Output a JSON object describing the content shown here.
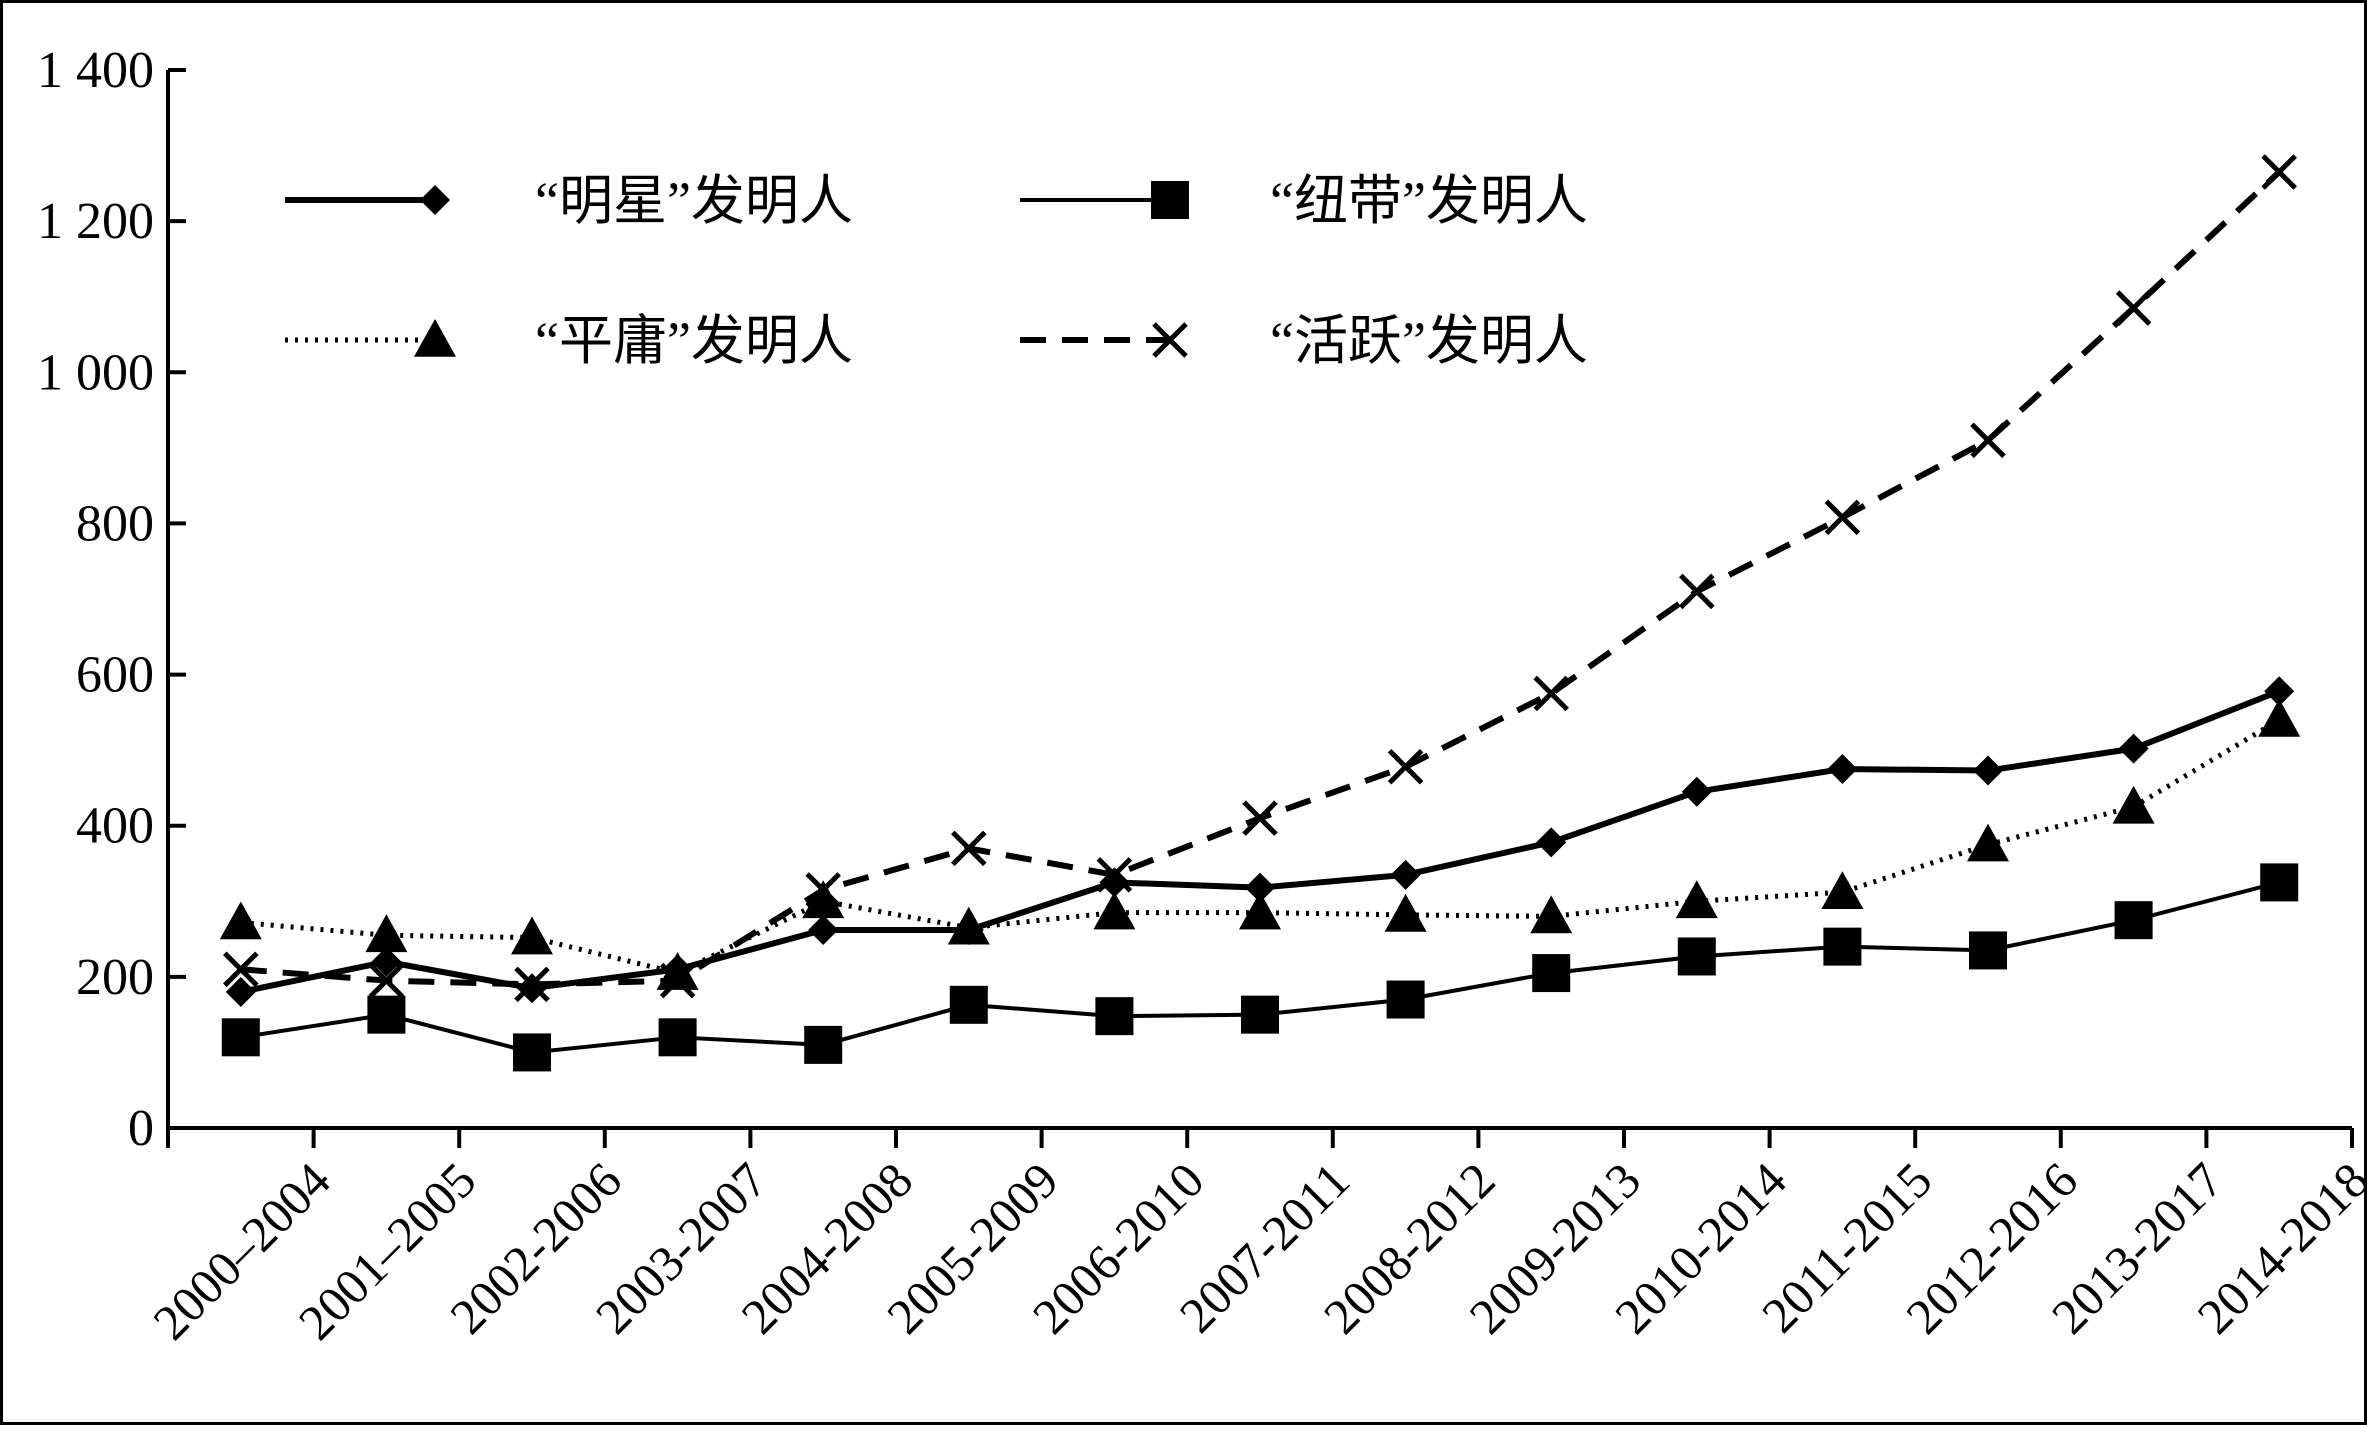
{
  "chart_data": {
    "type": "line",
    "title": "",
    "xlabel": "",
    "ylabel": "",
    "ylim": [
      0,
      1400
    ],
    "yticks": [
      {
        "value": 0,
        "label": "0"
      },
      {
        "value": 200,
        "label": "200"
      },
      {
        "value": 400,
        "label": "400"
      },
      {
        "value": 600,
        "label": "600"
      },
      {
        "value": 800,
        "label": "800"
      },
      {
        "value": 1000,
        "label": "1 000"
      },
      {
        "value": 1200,
        "label": "1 200"
      },
      {
        "value": 1400,
        "label": "1 400"
      }
    ],
    "categories": [
      "2000–2004",
      "2001–2005",
      "2002-2006",
      "2003-2007",
      "2004-2008",
      "2005-2009",
      "2006-2010",
      "2007-2011",
      "2008-2012",
      "2009-2013",
      "2010-2014",
      "2011-2015",
      "2012-2016",
      "2013-2017",
      "2014-2018"
    ],
    "grid": false,
    "legend_position": "top-left",
    "series": [
      {
        "name": "“明星”发明人",
        "marker": "diamond",
        "line": "solid-thick",
        "color": "#000000",
        "values": [
          180,
          220,
          185,
          210,
          262,
          262,
          325,
          318,
          335,
          378,
          445,
          475,
          473,
          502,
          578
        ]
      },
      {
        "name": "“纽带”发明人",
        "marker": "square",
        "line": "solid",
        "color": "#000000",
        "values": [
          120,
          150,
          100,
          120,
          110,
          163,
          148,
          150,
          170,
          205,
          227,
          240,
          235,
          275,
          325
        ]
      },
      {
        "name": "“平庸”发明人",
        "marker": "triangle",
        "line": "dotted",
        "color": "#000000",
        "values": [
          272,
          255,
          252,
          205,
          300,
          265,
          285,
          285,
          282,
          280,
          300,
          312,
          375,
          425,
          540
        ]
      },
      {
        "name": "“活跃”发明人",
        "marker": "x",
        "line": "dashed",
        "color": "#000000",
        "values": [
          210,
          195,
          190,
          195,
          315,
          370,
          335,
          410,
          478,
          575,
          710,
          808,
          910,
          1085,
          1265
        ]
      }
    ]
  }
}
